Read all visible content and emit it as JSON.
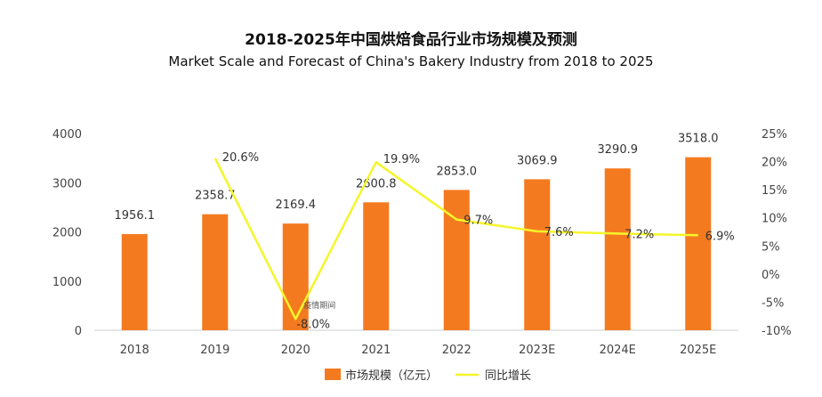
{
  "title_cn": "2018-2025年中国烘焙食品行业市场规模及预测",
  "title_en": "Market Scale and Forecast of China's Bakery Industry from 2018 to 2025",
  "chart_data": {
    "type": "bar",
    "categories": [
      "2018",
      "2019",
      "2020",
      "2021",
      "2022",
      "2023E",
      "2024E",
      "2025E"
    ],
    "series": [
      {
        "name": "市场规模（亿元）",
        "type": "bar",
        "axis": "left",
        "color": "#F47A20",
        "values": [
          1956.1,
          2358.7,
          2169.4,
          2600.8,
          2853.0,
          3069.9,
          3290.9,
          3518.0
        ],
        "labels": [
          "1956.1",
          "2358.7",
          "2169.4",
          "2600.8",
          "2853.0",
          "3069.9",
          "3290.9",
          "3518.0"
        ]
      },
      {
        "name": "同比增长",
        "type": "line",
        "axis": "right",
        "color": "#F5F52A",
        "values": [
          null,
          20.6,
          -8.0,
          19.9,
          9.7,
          7.6,
          7.2,
          6.9
        ],
        "labels": [
          "",
          "20.6%",
          "-8.0%",
          "19.9%",
          "9.7%",
          "7.6%",
          "7.2%",
          "6.9%"
        ]
      }
    ],
    "y_left": {
      "min": 0,
      "max": 4000,
      "ticks": [
        "0",
        "1000",
        "2000",
        "3000",
        "4000"
      ]
    },
    "y_right": {
      "min": -10,
      "max": 25,
      "ticks": [
        "-10%",
        "-5%",
        "0%",
        "5%",
        "10%",
        "15%",
        "20%",
        "25%"
      ]
    },
    "annotation": {
      "category": "2020",
      "text": "疫情期间"
    },
    "legend_position": "bottom",
    "grid": false
  }
}
